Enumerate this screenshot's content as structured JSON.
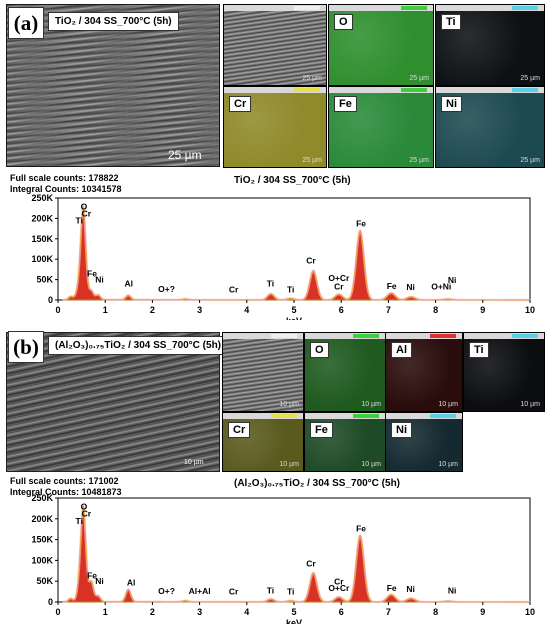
{
  "panel_a": {
    "letter": "(a)",
    "sem_label": "TiO₂ / 304 SS_700°C (5h)",
    "scale": "25 µm",
    "maps": [
      {
        "label": "",
        "scale": "25 µm",
        "color": "#4e4e4e",
        "head": "#eeeeee"
      },
      {
        "label": "O",
        "scale": "25 µm",
        "color": "#2f8f2f",
        "head": "#3bd13b"
      },
      {
        "label": "Ti",
        "scale": "25 µm",
        "color": "#0d1114",
        "head": "#5ad0e8"
      },
      {
        "label": "Cr",
        "scale": "25 µm",
        "color": "#8f8a2a",
        "head": "#e8e04a"
      },
      {
        "label": "Fe",
        "scale": "25 µm",
        "color": "#2a8a3a",
        "head": "#3bd13b"
      },
      {
        "label": "Ni",
        "scale": "25 µm",
        "color": "#1d4a50",
        "head": "#5ad0e8"
      }
    ],
    "full_scale_counts": "Full scale counts: 178822",
    "integral_counts": "Integral Counts: 10341578",
    "spectrum_title": "TiO₂ / 304 SS_700°C (5h)"
  },
  "panel_b": {
    "letter": "(b)",
    "sem_label": "(Al₂O₃)₀.₇₅TiO₂ / 304 SS_700°C (5h)",
    "scale": "10 µm",
    "maps": [
      {
        "label": "",
        "scale": "10 µm",
        "color": "#5a5a5a",
        "head": "#eeeeee"
      },
      {
        "label": "O",
        "scale": "10 µm",
        "color": "#1f5a1f",
        "head": "#3bd13b"
      },
      {
        "label": "Al",
        "scale": "10 µm",
        "color": "#2a0c0c",
        "head": "#e03030"
      },
      {
        "label": "Ti",
        "scale": "10 µm",
        "color": "#0b0d10",
        "head": "#5ad0e8"
      },
      {
        "label": "Cr",
        "scale": "10 µm",
        "color": "#5a5a1f",
        "head": "#e8e04a"
      },
      {
        "label": "Fe",
        "scale": "10 µm",
        "color": "#1e4a26",
        "head": "#3bd13b"
      },
      {
        "label": "Ni",
        "scale": "10 µm",
        "color": "#142a30",
        "head": "#5ad0e8"
      }
    ],
    "full_scale_counts": "Full scale counts: 171002",
    "integral_counts": "Integral Counts: 10481873",
    "spectrum_title": "(Al₂O₃)₀.₇₅TiO₂ / 304 SS_700°C (5h)"
  },
  "chart_data": [
    {
      "type": "line",
      "xlabel": "keV",
      "xlim": [
        0,
        10
      ],
      "ylim": [
        0,
        250000
      ],
      "x_ticks": [
        "0",
        "1",
        "2",
        "3",
        "4",
        "5",
        "6",
        "7",
        "8",
        "9",
        "10"
      ],
      "y_ticks": [
        "0",
        "50K",
        "100K",
        "150K",
        "200K",
        "250K"
      ],
      "peaks": [
        {
          "x": 0.27,
          "y": 8000
        },
        {
          "x": 0.39,
          "y": 6000
        },
        {
          "x": 0.45,
          "y": 30000
        },
        {
          "x": 0.525,
          "y": 172000
        },
        {
          "x": 0.57,
          "y": 70000
        },
        {
          "x": 0.705,
          "y": 22000
        },
        {
          "x": 0.85,
          "y": 12000
        },
        {
          "x": 1.49,
          "y": 11000
        },
        {
          "x": 2.7,
          "y": 2500
        },
        {
          "x": 4.51,
          "y": 15000
        },
        {
          "x": 4.93,
          "y": 4000
        },
        {
          "x": 5.41,
          "y": 72000
        },
        {
          "x": 5.95,
          "y": 14000
        },
        {
          "x": 6.4,
          "y": 170000
        },
        {
          "x": 7.06,
          "y": 17000
        },
        {
          "x": 7.48,
          "y": 8000
        },
        {
          "x": 8.26,
          "y": 2500
        }
      ],
      "annotations": [
        {
          "text": "O",
          "x": 0.55,
          "y": 222000
        },
        {
          "text": "Cr",
          "x": 0.6,
          "y": 205000
        },
        {
          "text": "Ti",
          "x": 0.45,
          "y": 188000
        },
        {
          "text": "Fe",
          "x": 0.72,
          "y": 57000
        },
        {
          "text": "Ni",
          "x": 0.88,
          "y": 43000
        },
        {
          "text": "Al",
          "x": 1.5,
          "y": 33000
        },
        {
          "text": "O+?",
          "x": 2.3,
          "y": 19000
        },
        {
          "text": "Cr",
          "x": 3.72,
          "y": 18000
        },
        {
          "text": "Ti",
          "x": 4.5,
          "y": 33000
        },
        {
          "text": "Ti",
          "x": 4.93,
          "y": 18000
        },
        {
          "text": "Cr",
          "x": 5.36,
          "y": 90000
        },
        {
          "text": "O+Cr",
          "x": 5.95,
          "y": 46000
        },
        {
          "text": "Cr",
          "x": 5.95,
          "y": 26000
        },
        {
          "text": "Fe",
          "x": 6.42,
          "y": 180000
        },
        {
          "text": "Fe",
          "x": 7.07,
          "y": 27000
        },
        {
          "text": "Ni",
          "x": 7.47,
          "y": 24000
        },
        {
          "text": "Ni",
          "x": 8.35,
          "y": 42000
        },
        {
          "text": "O+Ni",
          "x": 8.12,
          "y": 26000
        }
      ]
    },
    {
      "type": "line",
      "xlabel": "keV",
      "xlim": [
        0,
        10
      ],
      "ylim": [
        0,
        250000
      ],
      "x_ticks": [
        "0",
        "1",
        "2",
        "3",
        "4",
        "5",
        "6",
        "7",
        "8",
        "9",
        "10"
      ],
      "y_ticks": [
        "0",
        "50K",
        "100K",
        "150K",
        "200K",
        "250K"
      ],
      "peaks": [
        {
          "x": 0.27,
          "y": 8000
        },
        {
          "x": 0.45,
          "y": 35000
        },
        {
          "x": 0.525,
          "y": 165000
        },
        {
          "x": 0.57,
          "y": 80000
        },
        {
          "x": 0.705,
          "y": 48000
        },
        {
          "x": 0.85,
          "y": 14000
        },
        {
          "x": 1.49,
          "y": 30000
        },
        {
          "x": 2.7,
          "y": 3000
        },
        {
          "x": 4.51,
          "y": 7000
        },
        {
          "x": 4.93,
          "y": 3000
        },
        {
          "x": 5.41,
          "y": 70000
        },
        {
          "x": 5.95,
          "y": 12000
        },
        {
          "x": 6.4,
          "y": 160000
        },
        {
          "x": 7.06,
          "y": 18000
        },
        {
          "x": 7.48,
          "y": 9000
        },
        {
          "x": 8.26,
          "y": 2000
        }
      ],
      "annotations": [
        {
          "text": "O",
          "x": 0.55,
          "y": 222000
        },
        {
          "text": "Cr",
          "x": 0.6,
          "y": 205000
        },
        {
          "text": "Ti",
          "x": 0.45,
          "y": 188000
        },
        {
          "text": "Fe",
          "x": 0.72,
          "y": 57000
        },
        {
          "text": "Ni",
          "x": 0.88,
          "y": 43000
        },
        {
          "text": "Al",
          "x": 1.55,
          "y": 40000
        },
        {
          "text": "O+?",
          "x": 2.3,
          "y": 19000
        },
        {
          "text": "Al+Al",
          "x": 3.0,
          "y": 19000
        },
        {
          "text": "Cr",
          "x": 3.72,
          "y": 18000
        },
        {
          "text": "Ti",
          "x": 4.5,
          "y": 20000
        },
        {
          "text": "Ti",
          "x": 4.93,
          "y": 18000
        },
        {
          "text": "Cr",
          "x": 5.36,
          "y": 85000
        },
        {
          "text": "Cr",
          "x": 5.95,
          "y": 42000
        },
        {
          "text": "O+Cr",
          "x": 5.95,
          "y": 26000
        },
        {
          "text": "Fe",
          "x": 6.42,
          "y": 170000
        },
        {
          "text": "Fe",
          "x": 7.07,
          "y": 27000
        },
        {
          "text": "Ni",
          "x": 7.47,
          "y": 24000
        },
        {
          "text": "Ni",
          "x": 8.35,
          "y": 20000
        }
      ]
    }
  ]
}
